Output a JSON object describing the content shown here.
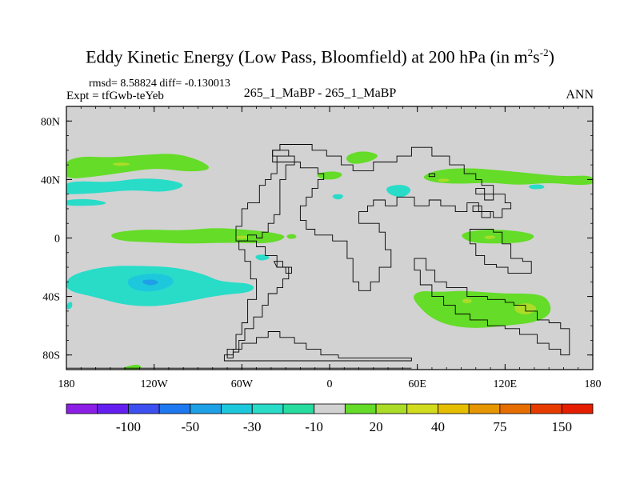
{
  "title": {
    "main": "Eddy Kinetic Energy (Low Pass, Bloomfield) at 200 hPa (in m",
    "sup1": "2",
    "mid": "s",
    "sup2": "-2",
    "end": ")"
  },
  "header": {
    "rmsd_text": "rmsd= 8.58824 diff= -0.130013",
    "expt_text": "Expt = tfGwb-teYeb",
    "case_text": "265_1_MaBP - 265_1_MaBP",
    "season_text": "ANN"
  },
  "colors": {
    "background_field": "#d2d2d2",
    "light_teal": "#28dcc8",
    "medium_teal": "#1ec8dc",
    "light_green": "#64dc28",
    "yellow_green": "#aadc28",
    "coast": "#000000",
    "frame": "#000000"
  },
  "chart_data": {
    "type": "heatmap",
    "projection": "cylindrical equidistant",
    "title": "Eddy Kinetic Energy (Low Pass, Bloomfield) at 200 hPa (in m^2 s^-2)",
    "xlim": [
      -180,
      180
    ],
    "ylim": [
      -90,
      90
    ],
    "x_ticks": [
      -180,
      -120,
      -60,
      0,
      60,
      120,
      180
    ],
    "x_tick_labels": [
      "180",
      "120W",
      "60W",
      "0",
      "60E",
      "120E",
      "180"
    ],
    "y_ticks": [
      80,
      40,
      0,
      -40,
      -80
    ],
    "y_tick_labels": [
      "80N",
      "40N",
      "0",
      "40S",
      "80S"
    ],
    "colorbar": {
      "boundaries": [
        -150,
        -100,
        -75,
        -50,
        -40,
        -30,
        -20,
        -10,
        10,
        20,
        30,
        40,
        50,
        75,
        100,
        150
      ],
      "labels": [
        "-100",
        "-50",
        "-30",
        "-10",
        "20",
        "40",
        "75",
        "150"
      ],
      "label_slots": [
        1,
        3,
        5,
        7,
        9,
        11,
        13,
        15
      ],
      "colors": [
        "#8c1ee6",
        "#641ef0",
        "#3c50f0",
        "#1e78f0",
        "#1ea0e6",
        "#1ec8dc",
        "#28dcc8",
        "#28dca0",
        "#d2d2d2",
        "#64dc28",
        "#aadc28",
        "#d2dc1e",
        "#e6be00",
        "#e69600",
        "#e66e00",
        "#e63c00",
        "#e61e00"
      ]
    },
    "features": [
      {
        "name": "NH midlatitude positive band",
        "level": 10,
        "lon_range": [
          -180,
          -75
        ],
        "lat_range": [
          40,
          58
        ]
      },
      {
        "name": "NH teal band Pacific",
        "level": -10,
        "lon_range": [
          -180,
          -95
        ],
        "lat_range": [
          28,
          40
        ]
      },
      {
        "name": "Equatorial green patch",
        "level": 10,
        "lon_range": [
          -150,
          -25
        ],
        "lat_range": [
          -5,
          5
        ]
      },
      {
        "name": "SH Pacific teal patch",
        "level": -30,
        "lon_range": [
          -180,
          -50
        ],
        "lat_range": [
          -48,
          -18
        ]
      },
      {
        "name": "SH Indian Ocean green band",
        "level": 10,
        "lon_range": [
          55,
          152
        ],
        "lat_range": [
          -62,
          -34
        ]
      },
      {
        "name": "SH yellow-green maximum",
        "level": 20,
        "lon_range": [
          125,
          143
        ],
        "lat_range": [
          -52,
          -44
        ]
      },
      {
        "name": "NH Asia green band",
        "level": 10,
        "lon_range": [
          62,
          180
        ],
        "lat_range": [
          36,
          50
        ]
      },
      {
        "name": "Indian Ocean equatorial green",
        "level": 10,
        "lon_range": [
          85,
          142
        ],
        "lat_range": [
          -5,
          5
        ]
      }
    ]
  }
}
